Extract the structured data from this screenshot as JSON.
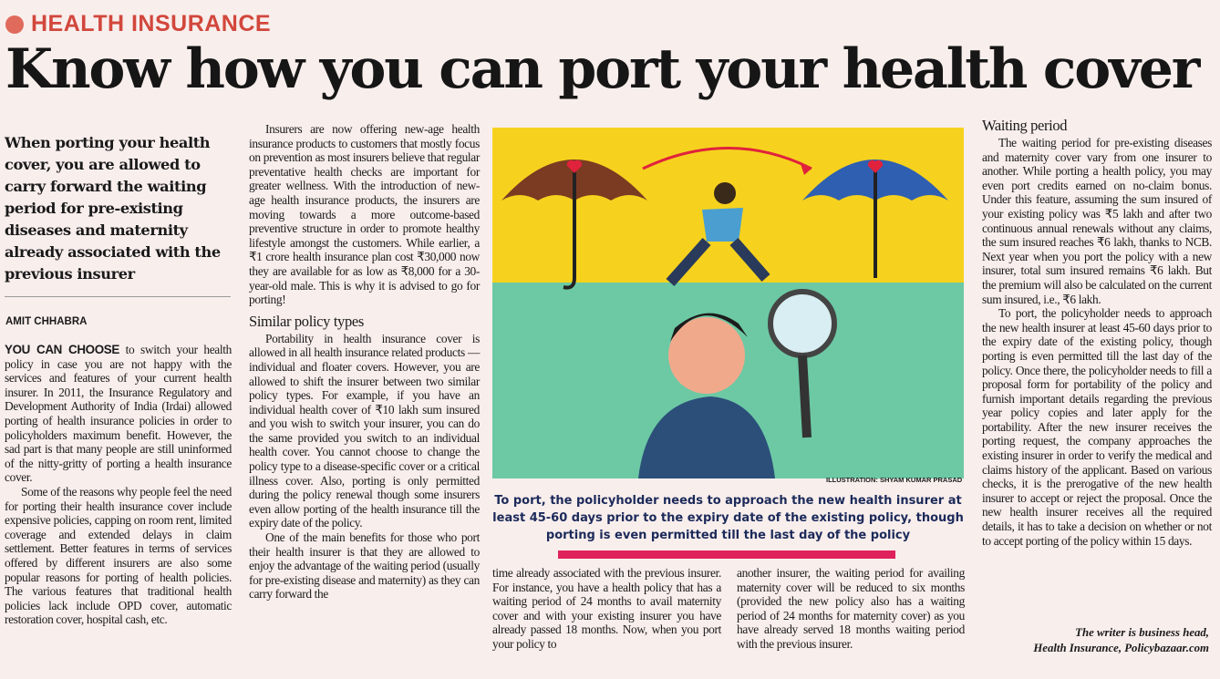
{
  "kicker": "HEALTH INSURANCE",
  "headline": "Know how you can port your health cover",
  "deck": "When porting your health cover, you are allowed to carry forward the waiting period for pre-existing diseases and maternity already associated with the previous insurer",
  "byline": "AMIT CHHABRA",
  "col1": {
    "lead": "YOU CAN CHOOSE",
    "p1": " to switch your health policy in case you are not happy with the services and features of your current health insurer. In 2011, the Insurance Regulatory and Development Authority of India (Irdai) allowed porting of health insurance policies in order to policyholders maximum benefit. However, the sad part is that many people are still uninformed of the nitty-gritty of porting a health insurance cover.",
    "p2": "Some of the reasons why people feel the need for porting their health insurance cover include expensive policies, capping on room rent, limited coverage and extended delays in claim settlement. Better features in terms of services offered by different insurers are also some popular reasons for porting of health policies. The various features that traditional health policies lack include OPD cover, automatic restoration cover, hospital cash, etc."
  },
  "col2": {
    "p1": "Insurers are now offering new-age health insurance products to customers that mostly focus on prevention as most insurers believe that regular preventative health checks are important for greater wellness. With the introduction of new-age health insurance products, the insurers are moving towards a more outcome-based preventive structure in order to promote healthy lifestyle amongst the customers. While earlier, a ₹1 crore health insurance plan cost ₹30,000 now they are available for as low as ₹8,000 for a 30-year-old male. This is why it is advised to go for porting!",
    "subhead": "Similar policy types",
    "p2": "Portability in health insurance cover is allowed in all health insurance related products — individual and floater covers. However, you are allowed to shift the insurer between two similar policy types. For example, if you have an individual health cover of ₹10 lakh sum insured and you wish to switch your insurer, you can do the same provided you switch to an individual health cover. You cannot choose to change the policy type to a disease-specific cover or a critical illness cover. Also, porting is only permitted during the policy renewal though some insurers even allow porting of the health insurance till the expiry date of the policy.",
    "p3": "One of the main benefits for those who port their health insurer is that they are allowed to enjoy the advantage of the waiting period (usually for pre-existing disease and maternity) as they can carry forward the"
  },
  "illustration": {
    "credit": "ILLUSTRATION: SHYAM KUMAR PRASAD",
    "colors": {
      "sky": "#f6d21e",
      "ground": "#6cc9a4",
      "umbrella_left": "#7a3b22",
      "umbrella_right": "#2f5fb0",
      "heart": "#e0223c",
      "arrow": "#e0223c"
    }
  },
  "caption": "To port, the policyholder needs to approach the new health insurer at least 45-60 days prior to the expiry date of the existing policy, though porting is even permitted till the last day of the policy",
  "accent_bar_color": "#e0225c",
  "col3": {
    "p1": "time already associated with the previous insurer. For instance, you have a health policy that has a waiting period of 24 months to avail maternity cover and with your existing insurer you have already passed 18 months. Now, when you port your policy to"
  },
  "col4": {
    "p1": "another insurer, the waiting period for availing maternity cover will be reduced to six months (provided the new policy also has a waiting period of 24 months for maternity cover) as you have already served 18 months waiting period with the previous insurer."
  },
  "col5": {
    "subhead": "Waiting period",
    "p1": "The waiting period for pre-existing diseases and maternity cover vary from one insurer to another. While porting a health policy, you may even port credits earned on no-claim bonus. Under this feature, assuming the sum insured of your existing policy was ₹5 lakh and after two continuous annual renewals without any claims, the sum insured reaches ₹6 lakh, thanks to NCB. Next year when you port the policy with a new insurer, total sum insured remains ₹6 lakh. But the premium will also be calculated on the current sum insured, i.e., ₹6 lakh.",
    "p2": "To port, the policyholder needs to approach the new health insurer at least 45-60 days prior to the expiry date of the existing policy, though porting is even permitted till the last day of the policy. Once there, the policyholder needs to fill a proposal form for portability of the policy and furnish important details regarding the previous year policy copies and later apply for the portability. After the new insurer receives the porting request, the company approaches the existing insurer in order to verify the medical and claims history of the applicant. Based on various checks, it is the prerogative of the new health insurer to accept or reject the proposal. Once the new health insurer receives all the required details, it has to take a decision on whether or not to accept porting of the policy within 15 days.",
    "sig1": "The writer is business head,",
    "sig2": "Health Insurance, Policybazaar.com"
  }
}
